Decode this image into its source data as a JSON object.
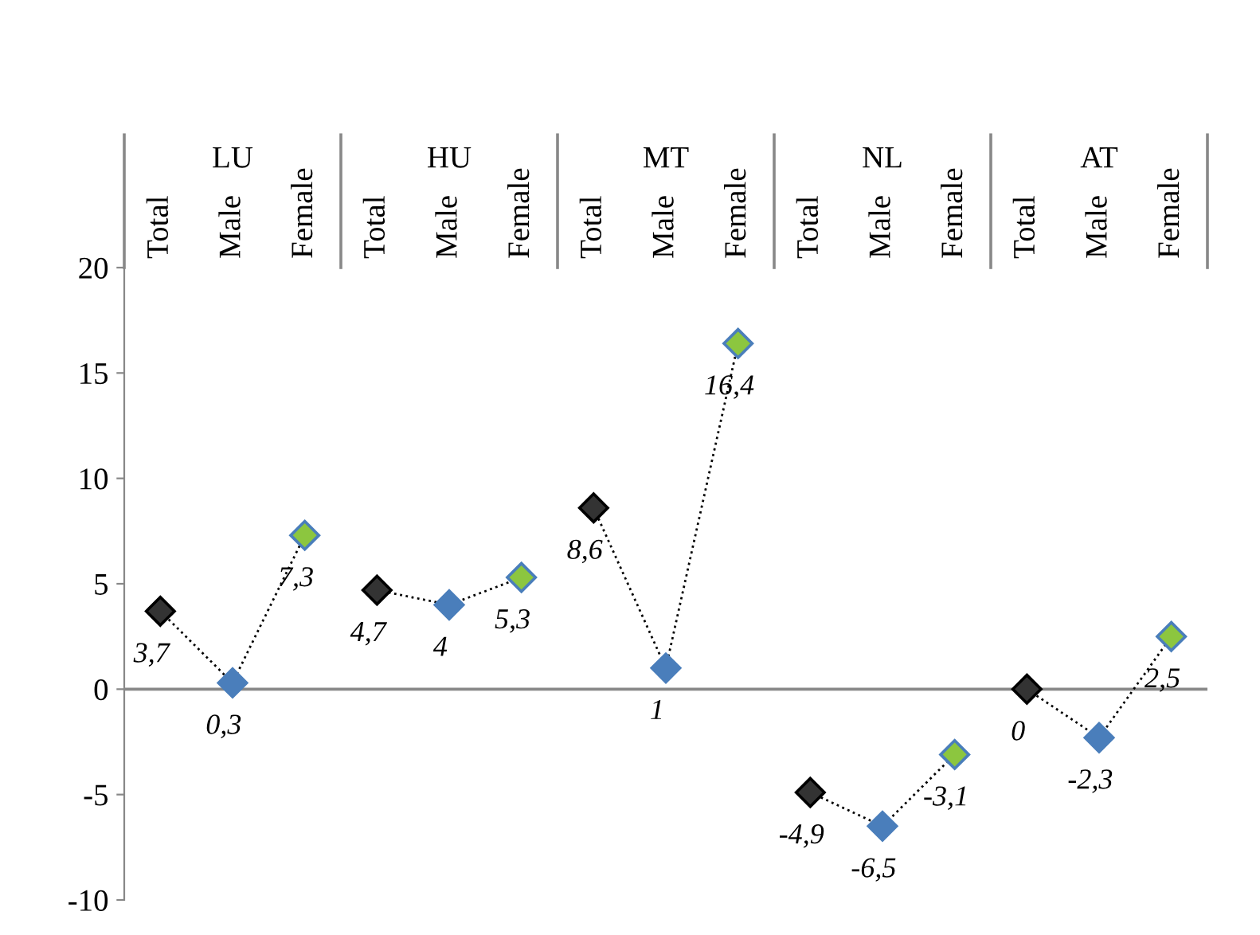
{
  "chart_data": {
    "type": "line",
    "categories": [
      "Total",
      "Male",
      "Female",
      "Total",
      "Male",
      "Female",
      "Total",
      "Male",
      "Female",
      "Total",
      "Male",
      "Female",
      "Total",
      "Male",
      "Female"
    ],
    "annotations": [
      "LU",
      "HU",
      "MT",
      "NL",
      "AT"
    ],
    "series": [
      {
        "color": "#000000",
        "colors": [
          "#333333",
          "#4a7ebb",
          "#8cc63f",
          null,
          null,
          null,
          null,
          null,
          null,
          null,
          null,
          null,
          null,
          null,
          null
        ],
        "values": [
          3.7,
          0.3,
          7.3,
          null,
          null,
          null,
          null,
          null,
          null,
          null,
          null,
          null,
          null,
          null,
          null
        ],
        "value_labels": [
          "3,7",
          "0,3",
          "7,3",
          null,
          null,
          null,
          null,
          null,
          null,
          null,
          null,
          null,
          null,
          null,
          null
        ]
      },
      {
        "color": "#000000",
        "colors": [
          null,
          null,
          null,
          "#333333",
          "#4a7ebb",
          "#8cc63f",
          null,
          null,
          null,
          null,
          null,
          null,
          null,
          null,
          null
        ],
        "values": [
          null,
          null,
          null,
          4.7,
          4,
          5.3,
          null,
          null,
          null,
          null,
          null,
          null,
          null,
          null,
          null
        ],
        "value_labels": [
          null,
          null,
          null,
          "4,7",
          "4",
          "5,3",
          null,
          null,
          null,
          null,
          null,
          null,
          null,
          null,
          null
        ]
      },
      {
        "color": "#000000",
        "colors": [
          null,
          null,
          null,
          null,
          null,
          null,
          "#333333",
          "#4a7ebb",
          "#8cc63f",
          null,
          null,
          null,
          null,
          null,
          null
        ],
        "values": [
          null,
          null,
          null,
          null,
          null,
          null,
          8.6,
          1,
          16.4,
          null,
          null,
          null,
          null,
          null,
          null
        ],
        "value_labels": [
          null,
          null,
          null,
          null,
          null,
          null,
          "8,6",
          "1",
          "16,4",
          null,
          null,
          null,
          null,
          null,
          null
        ]
      },
      {
        "color": "#000000",
        "colors": [
          null,
          null,
          null,
          null,
          null,
          null,
          null,
          null,
          null,
          "#333333",
          "#4a7ebb",
          "#8cc63f",
          null,
          null,
          null
        ],
        "values": [
          null,
          null,
          null,
          null,
          null,
          null,
          null,
          null,
          null,
          -4.9,
          -6.5,
          -3.1,
          null,
          null,
          null
        ],
        "value_labels": [
          null,
          null,
          null,
          null,
          null,
          null,
          null,
          null,
          null,
          "-4,9",
          "-6,5",
          "-3,1",
          null,
          null,
          null
        ]
      },
      {
        "color": "#000000",
        "colors": [
          null,
          null,
          null,
          null,
          null,
          null,
          null,
          null,
          null,
          null,
          null,
          null,
          "#333333",
          "#4a7ebb",
          "#8cc63f"
        ],
        "values": [
          null,
          null,
          null,
          null,
          null,
          null,
          null,
          null,
          null,
          null,
          null,
          null,
          0,
          -2.3,
          2.5
        ],
        "value_labels": [
          null,
          null,
          null,
          null,
          null,
          null,
          null,
          null,
          null,
          null,
          null,
          null,
          "0",
          "-2,3",
          "2,5"
        ]
      }
    ],
    "ylim": [
      -10,
      20
    ],
    "yticks": [
      -10,
      -5,
      0,
      5,
      10,
      15,
      20
    ],
    "grid": false,
    "ref_lines": [
      {
        "axis": "y",
        "value": 0,
        "color": "#888888",
        "line_style": "solid"
      }
    ],
    "legend": false,
    "marker": "diamond",
    "line_style": "dotted"
  }
}
